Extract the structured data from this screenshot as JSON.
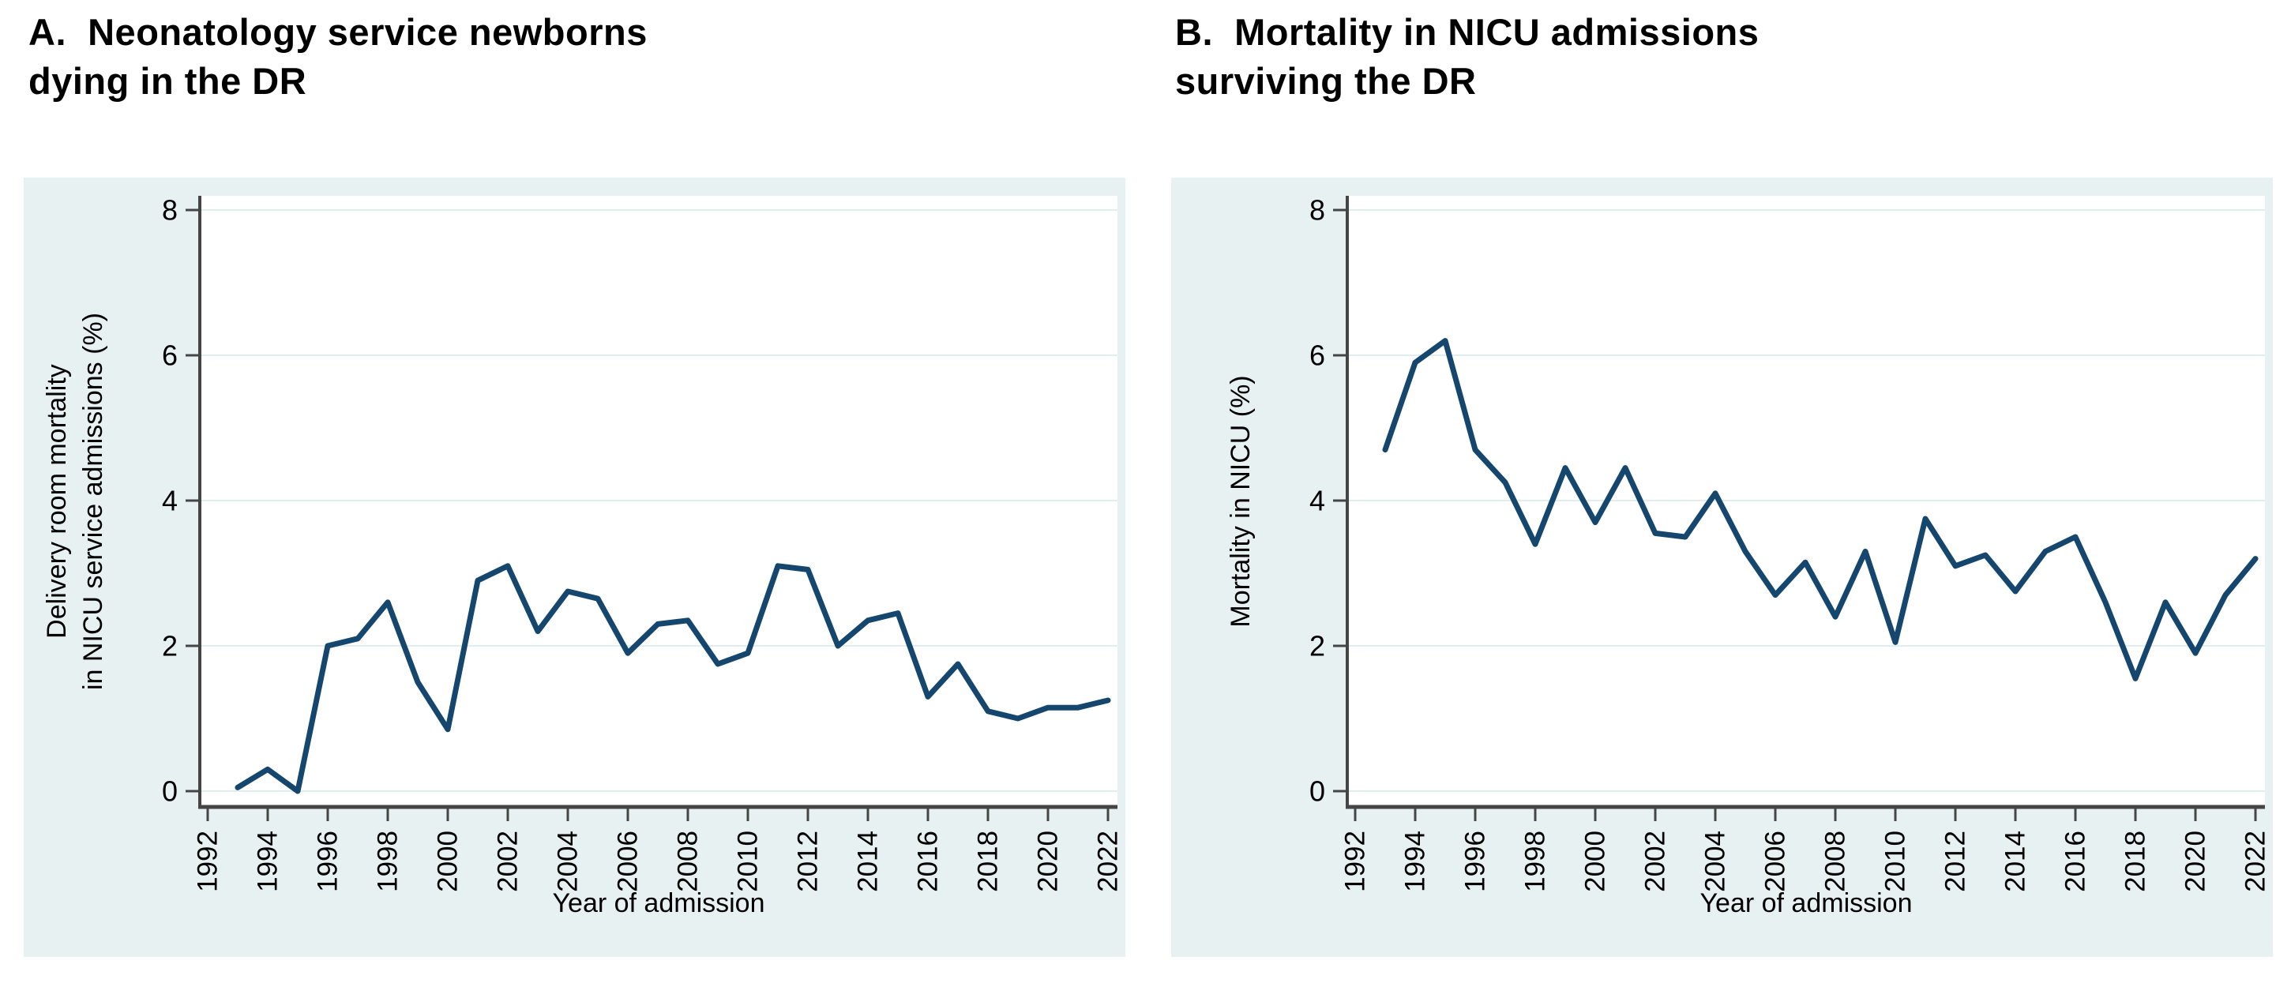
{
  "figure": {
    "background": "#ffffff"
  },
  "colors": {
    "panel_bg": "#e8f1f1",
    "plot_bg": "#ffffff",
    "grid": "#e1eef0",
    "axis": "#454545",
    "text": "#000000",
    "line": "#15466e"
  },
  "panels": [
    {
      "title_lines": [
        "A.  Neonatology service newborns",
        "dying in the DR"
      ],
      "ylabel_lines": [
        "Delivery room mortality",
        "in NICU service admissions (%)"
      ],
      "xlabel": "Year of admission"
    },
    {
      "title_lines": [
        "B.  Mortality in NICU admissions",
        "surviving the DR"
      ],
      "ylabel_lines": [
        "Mortality in NICU (%)"
      ],
      "xlabel": "Year of admission"
    }
  ],
  "chart_data": [
    {
      "type": "line",
      "title": "A. Neonatology service newborns dying in the DR",
      "xlabel": "Year of admission",
      "ylabel": "Delivery room mortality in NICU service admissions (%)",
      "line_color": "#15466e",
      "grid": true,
      "legend": false,
      "xlim": [
        1991.7,
        2022.4
      ],
      "ylim": [
        0,
        8
      ],
      "x_ticks": [
        1992,
        1994,
        1996,
        1998,
        2000,
        2002,
        2004,
        2006,
        2008,
        2010,
        2012,
        2014,
        2016,
        2018,
        2020,
        2022
      ],
      "y_ticks": [
        0,
        2,
        4,
        6,
        8
      ],
      "x": [
        1993,
        1994,
        1995,
        1996,
        1997,
        1998,
        1999,
        2000,
        2001,
        2002,
        2003,
        2004,
        2005,
        2006,
        2007,
        2008,
        2009,
        2010,
        2011,
        2012,
        2013,
        2014,
        2015,
        2016,
        2017,
        2018,
        2019,
        2020,
        2021,
        2022
      ],
      "values": [
        0.05,
        0.3,
        0.0,
        2.0,
        2.1,
        2.6,
        1.5,
        0.85,
        2.9,
        3.1,
        2.2,
        2.75,
        2.65,
        1.9,
        2.3,
        2.35,
        1.75,
        1.9,
        3.1,
        3.05,
        2.0,
        2.35,
        2.45,
        1.3,
        1.75,
        1.1,
        1.0,
        1.15,
        1.15,
        1.25
      ]
    },
    {
      "type": "line",
      "title": "B. Mortality in NICU admissions surviving the DR",
      "xlabel": "Year of admission",
      "ylabel": "Mortality in NICU (%)",
      "line_color": "#15466e",
      "grid": true,
      "legend": false,
      "xlim": [
        1991.7,
        2022.4
      ],
      "ylim": [
        0,
        8
      ],
      "x_ticks": [
        1992,
        1994,
        1996,
        1998,
        2000,
        2002,
        2004,
        2006,
        2008,
        2010,
        2012,
        2014,
        2016,
        2018,
        2020,
        2022
      ],
      "y_ticks": [
        0,
        2,
        4,
        6,
        8
      ],
      "x": [
        1993,
        1994,
        1995,
        1996,
        1997,
        1998,
        1999,
        2000,
        2001,
        2002,
        2003,
        2004,
        2005,
        2006,
        2007,
        2008,
        2009,
        2010,
        2011,
        2012,
        2013,
        2014,
        2015,
        2016,
        2017,
        2018,
        2019,
        2020,
        2021,
        2022
      ],
      "values": [
        4.7,
        5.9,
        6.2,
        4.7,
        4.25,
        3.4,
        4.45,
        3.7,
        4.45,
        3.55,
        3.5,
        4.1,
        3.3,
        2.7,
        3.15,
        2.4,
        3.3,
        2.05,
        3.75,
        3.1,
        3.25,
        2.75,
        3.3,
        3.5,
        2.6,
        1.55,
        2.6,
        1.9,
        2.7,
        3.2
      ]
    }
  ]
}
